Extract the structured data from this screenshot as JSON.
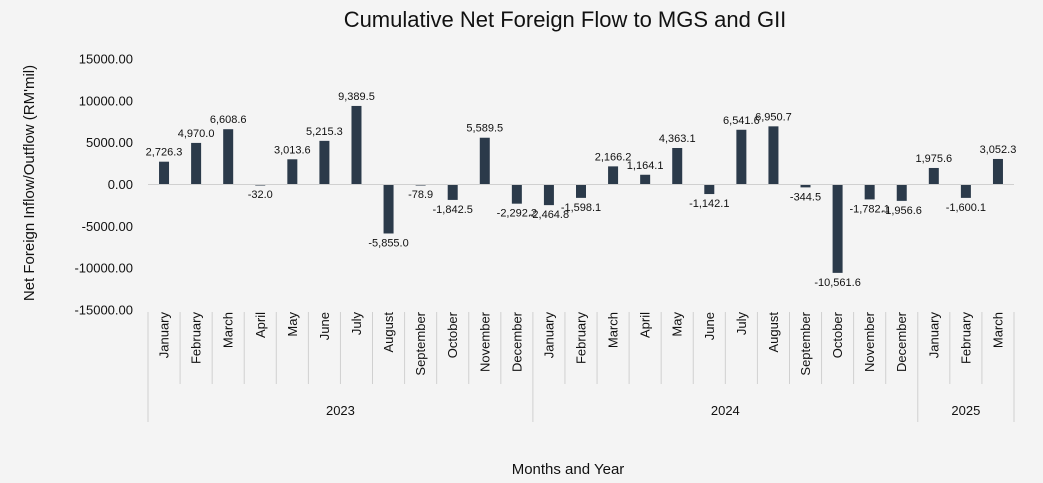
{
  "chart_data": {
    "type": "bar",
    "title": "Cumulative Net Foreign Flow to MGS and GII",
    "xlabel": "Months and Year",
    "ylabel": "Net Foreign Inflow/Outflow (RM'mil)",
    "ylim": [
      -15000,
      15000
    ],
    "yticks": [
      "15000.00",
      "10000.00",
      "5000.00",
      "0.00",
      "-5000.00",
      "-10000.00",
      "-15000.00"
    ],
    "grid": false,
    "bar_color": "#2b3a4a",
    "categories": [
      "January",
      "February",
      "March",
      "April",
      "May",
      "June",
      "July",
      "August",
      "September",
      "October",
      "November",
      "December",
      "January",
      "February",
      "March",
      "April",
      "May",
      "June",
      "July",
      "August",
      "September",
      "October",
      "November",
      "December",
      "January",
      "February",
      "March"
    ],
    "groups": [
      {
        "label": "2023",
        "count": 12
      },
      {
        "label": "2024",
        "count": 12
      },
      {
        "label": "2025",
        "count": 3
      }
    ],
    "values": [
      2726.3,
      4970.0,
      6608.6,
      -32.0,
      3013.6,
      5215.3,
      9389.5,
      -5855.0,
      -78.9,
      -1842.5,
      5589.5,
      -2292.2,
      -2464.8,
      -1598.1,
      2166.2,
      1164.1,
      4363.1,
      -1142.1,
      6541.6,
      6950.7,
      -344.5,
      -10561.6,
      -1782.1,
      -1956.6,
      1975.6,
      -1600.1,
      3052.3
    ],
    "data_labels": [
      "2,726.3",
      "4,970.0",
      "6,608.6",
      "-32.0",
      "3,013.6",
      "5,215.3",
      "9,389.5",
      "-5,855.0",
      "-78.9",
      "-1,842.5",
      "5,589.5",
      "-2,292.2",
      "-2,464.8",
      "-1,598.1",
      "2,166.2",
      "1,164.1",
      "4,363.1",
      "-1,142.1",
      "6,541.6",
      "6,950.7",
      "-344.5",
      "-10,561.6",
      "-1,782.1",
      "-1,956.6",
      "1,975.6",
      "-1,600.1",
      "3,052.3"
    ]
  }
}
